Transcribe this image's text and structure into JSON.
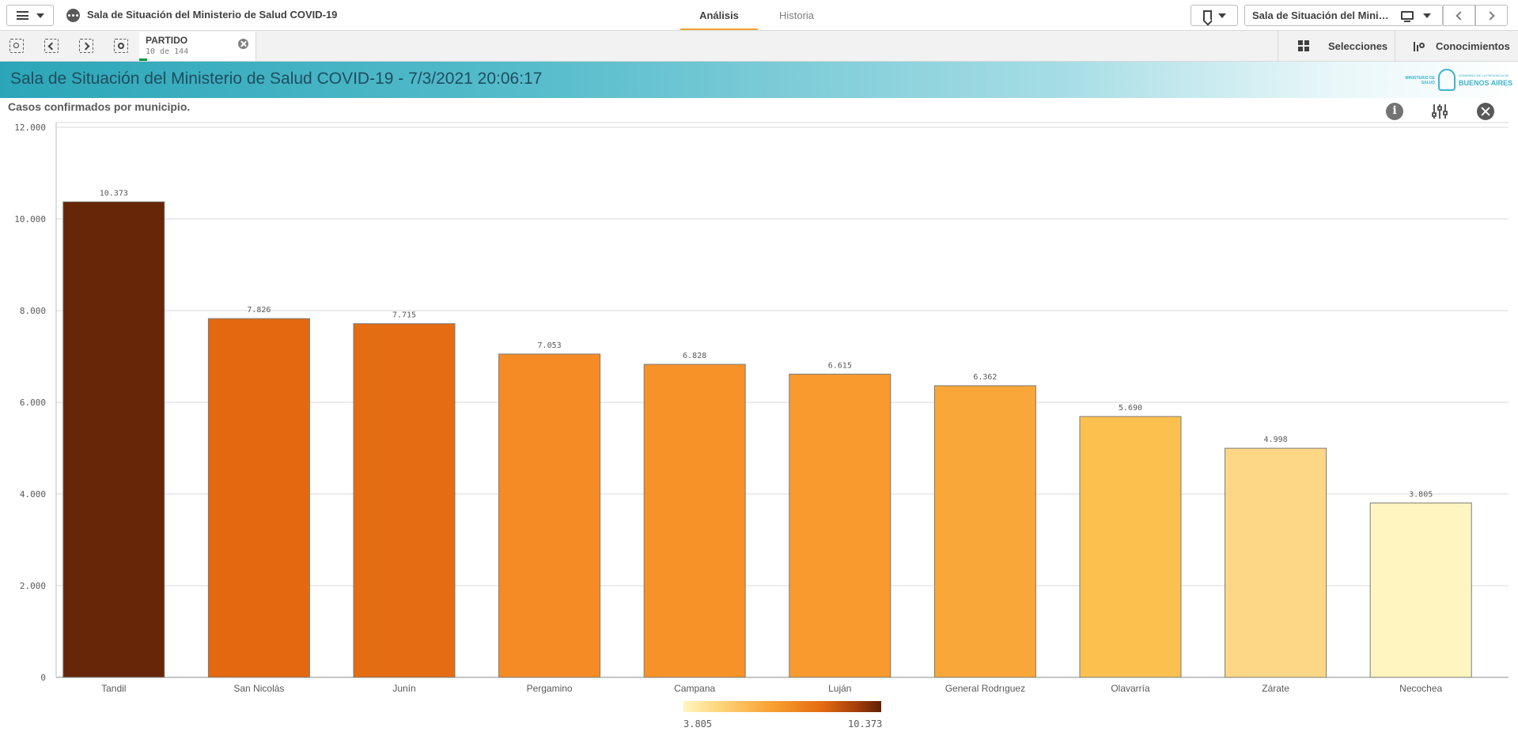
{
  "header": {
    "app_title": "Sala de Situación del Ministerio de Salud COVID-19",
    "tabs": [
      {
        "label": "Análisis",
        "active": true
      },
      {
        "label": "Historia",
        "active": false
      }
    ],
    "sheet_selector_label": "Sala de Situación del Ministerio de Salud COVID-19",
    "icons": {
      "menu": "hamburger-menu-icon",
      "app": "app-icon",
      "bookmark": "bookmark-icon",
      "sheet": "monitor-icon",
      "prev": "chevron-left-icon",
      "next": "chevron-right-icon"
    }
  },
  "toolbar": {
    "selection": {
      "field": "PARTIDO",
      "count": "10 de 144"
    },
    "selections_label": "Selecciones",
    "insights_label": "Conocimientos"
  },
  "banner": {
    "title": "Sala de Situación del Ministerio de Salud COVID-19 - 7/3/2021 20:06:17",
    "logo_left": "MINISTERIO DE SALUD",
    "logo_right_top": "GOBIERNO DE LA PROVINCIA DE",
    "logo_right": "BUENOS AIRES",
    "accent_color": "#2ba6b8"
  },
  "chart_title": "Casos confirmados por municipio.",
  "chart_data": {
    "type": "bar",
    "title": "Casos confirmados por municipio.",
    "xlabel": "",
    "ylabel": "",
    "categories": [
      "Tandil",
      "San Nicolás",
      "Junín",
      "Pergamino",
      "Campana",
      "Luján",
      "General Rodrıguez",
      "Olavarría",
      "Zárate",
      "Necochea"
    ],
    "values": [
      10373,
      7826,
      7715,
      7053,
      6828,
      6615,
      6362,
      5690,
      4998,
      3805
    ],
    "value_labels": [
      "10.373",
      "7.826",
      "7.715",
      "7.053",
      "6.828",
      "6.615",
      "6.362",
      "5.690",
      "4.998",
      "3.805"
    ],
    "colors": [
      "#672608",
      "#e36810",
      "#e46c12",
      "#f58b24",
      "#f69228",
      "#f99a2e",
      "#faa73a",
      "#fcc04f",
      "#fdd785",
      "#fff5c0"
    ],
    "ylim": [
      0,
      12000
    ],
    "yticks": [
      0,
      2000,
      4000,
      6000,
      8000,
      10000,
      12000
    ],
    "ytick_labels": [
      "0",
      "2.000",
      "4.000",
      "6.000",
      "8.000",
      "10.000",
      "12.000"
    ],
    "grid": true,
    "legend": {
      "min": "3.805",
      "max": "10.373",
      "placement": "bottom-center"
    }
  }
}
